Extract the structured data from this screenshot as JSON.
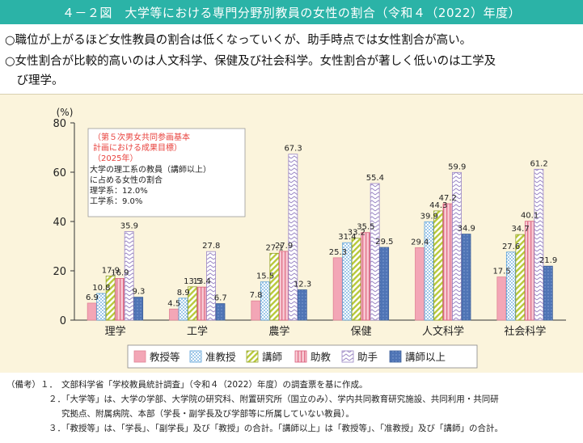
{
  "title": "４－２図　大学等における専門分野別教員の女性の割合（令和４（2022）年度）",
  "summary": [
    "○職位が上がるほど女性教員の割合は低くなっていくが、助手時点では女性割合が高い。",
    "○女性割合が比較的高いのは人文科学、保健及び社会科学。女性割合が著しく低いのは工学及",
    "　び理学。"
  ],
  "annotation": {
    "target_title_lines": [
      "（第５次男女共同参画基本",
      "計画における成果目標）",
      "（2025年）"
    ],
    "body_lines": [
      "大学の理工系の教員（講師以上）",
      "に占める女性の割合",
      "理学系：12.0%",
      "工学系：9.0%"
    ]
  },
  "notes": [
    {
      "label": "（備考）１．",
      "text": "文部科学省「学校教員統計調査」（令和４（2022）年度）の調査票を基に作成。"
    },
    {
      "label": "２．",
      "text": "「大学等」は、大学の学部、大学院の研究科、附置研究所（国立のみ）、学内共同教育研究施設、共同利用・共同研"
    },
    {
      "label": "",
      "text": "究拠点、附属病院、本部（学長・副学長及び学部等に所属していない教員）。"
    },
    {
      "label": "３．",
      "text": "「教授等」は、「学長」、「副学長」及び「教授」の合計。「講師以上」は「教授等」、「准教授」及び「講師」の合計。"
    }
  ],
  "colors": {
    "header": "#2bb3a7",
    "chart_bg": "#fbf4dc",
    "series": [
      "#f3a6b6",
      "#5aa0d8",
      "#b8c93a",
      "#e8859a",
      "#9a86c4",
      "#4f74b5"
    ]
  },
  "chart_data": {
    "type": "bar",
    "ylabel": "(%)",
    "ylim": [
      0,
      80
    ],
    "yticks": [
      0,
      20,
      40,
      60,
      80
    ],
    "categories": [
      "理学",
      "工学",
      "農学",
      "保健",
      "人文科学",
      "社会科学"
    ],
    "series": [
      {
        "name": "教授等",
        "values": [
          6.9,
          4.5,
          7.8,
          25.3,
          29.4,
          17.5
        ]
      },
      {
        "name": "准教授",
        "values": [
          10.8,
          8.9,
          15.5,
          31.4,
          39.9,
          27.6
        ]
      },
      {
        "name": "講師",
        "values": [
          17.9,
          13.5,
          27.1,
          33.2,
          44.3,
          34.7
        ]
      },
      {
        "name": "助教",
        "values": [
          16.9,
          13.4,
          27.9,
          35.5,
          47.2,
          40.1
        ]
      },
      {
        "name": "助手",
        "values": [
          35.9,
          27.8,
          67.3,
          55.4,
          59.9,
          61.2
        ]
      },
      {
        "name": "講師以上",
        "values": [
          9.3,
          6.7,
          12.3,
          29.5,
          34.9,
          21.9
        ]
      }
    ],
    "legend_position": "bottom",
    "grid": false
  }
}
